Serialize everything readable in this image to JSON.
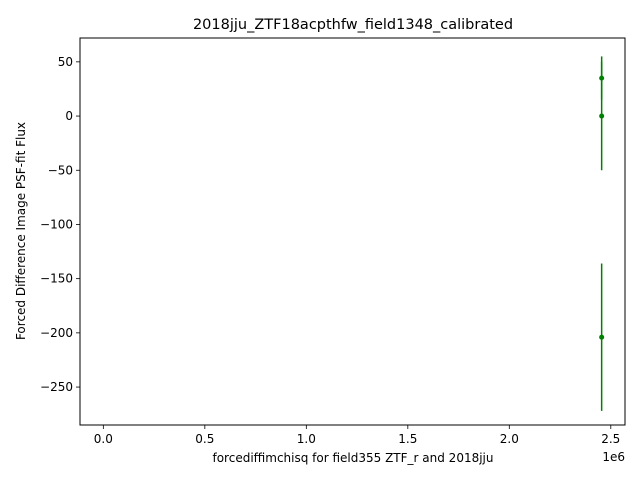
{
  "chart_data": {
    "type": "scatter",
    "title": "2018jju_ZTF18acpthfw_field1348_calibrated",
    "xlabel": "forcediffimchisq for field355 ZTF_r and 2018jju",
    "ylabel": "Forced Difference Image PSF-fit Flux",
    "x_offset_label": "1e6",
    "xlim": [
      -115000,
      2570000
    ],
    "ylim": [
      -285,
      72
    ],
    "x_ticks": [
      0,
      500000,
      1000000,
      1500000,
      2000000,
      2500000
    ],
    "x_tick_labels": [
      "0.0",
      "0.5",
      "1.0",
      "1.5",
      "2.0",
      "2.5"
    ],
    "y_ticks": [
      50,
      0,
      -50,
      -100,
      -150,
      -200,
      -250
    ],
    "y_tick_labels": [
      "50",
      "0",
      "−50",
      "−100",
      "−150",
      "−200",
      "−250"
    ],
    "grid": false,
    "legend": "none",
    "marker": "errorbar-point",
    "color": "#008000",
    "points": [
      {
        "x": 2455000,
        "y": 35,
        "yerr": 20
      },
      {
        "x": 2455000,
        "y": 0,
        "yerr": 50
      },
      {
        "x": 2455000,
        "y": -204,
        "yerr": 68
      }
    ]
  }
}
